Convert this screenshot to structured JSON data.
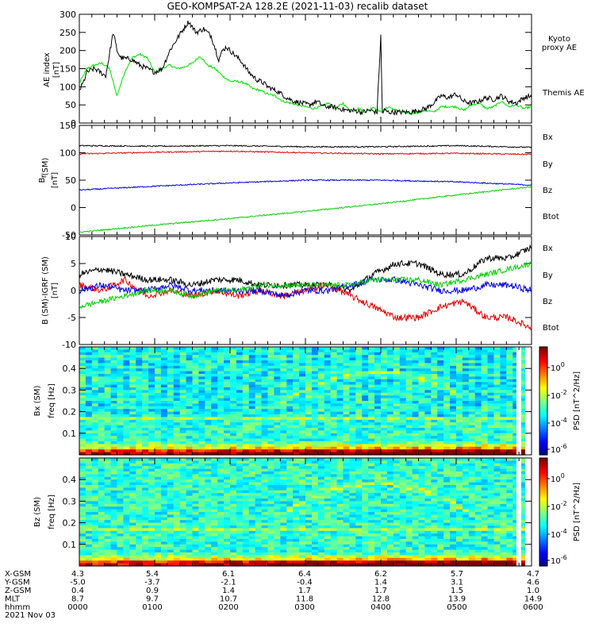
{
  "title": "GEO-KOMPSAT-2A 128.2E (2021-11-03) recalib dataset",
  "colors": {
    "black": "#000000",
    "red": "#e00000",
    "blue": "#0000e0",
    "green": "#00d000",
    "kyoto": "#00e000"
  },
  "chart_data": [
    {
      "type": "line",
      "ylabel": "AE index [nT]",
      "ylim": [
        0,
        300
      ],
      "yticks": [
        "0",
        "50",
        "100",
        "150",
        "200",
        "250",
        "300"
      ],
      "legend": [
        "Kyoto proxy AE",
        "Themis AE"
      ],
      "series": [
        {
          "name": "Themis AE",
          "color": "#000000",
          "x": [
            0,
            0.05,
            0.1,
            0.2,
            0.28,
            0.35,
            0.45,
            0.5,
            0.55,
            0.7,
            0.8,
            0.9,
            1.0,
            1.1,
            1.2,
            1.35,
            1.45,
            1.55,
            1.65,
            1.75,
            1.85,
            1.9,
            1.95,
            2.05,
            2.15,
            2.25,
            2.35,
            2.45,
            2.5,
            2.55,
            2.65,
            2.75,
            2.85,
            2.95,
            3.05,
            3.15,
            3.25,
            3.35,
            3.45,
            3.55,
            3.65,
            3.75,
            3.85,
            3.95,
            4.0,
            4.02,
            4.03,
            4.05,
            4.1,
            4.2,
            4.3,
            4.4,
            4.5,
            4.6,
            4.7,
            4.8,
            4.9,
            5.0,
            5.1,
            5.2,
            5.3,
            5.4,
            5.5,
            5.6,
            5.7,
            5.8,
            5.9,
            6.0
          ],
          "y": [
            90,
            110,
            140,
            150,
            140,
            130,
            250,
            200,
            180,
            175,
            160,
            150,
            140,
            150,
            200,
            250,
            280,
            250,
            260,
            240,
            175,
            200,
            210,
            190,
            170,
            140,
            120,
            110,
            100,
            95,
            85,
            70,
            60,
            55,
            50,
            60,
            45,
            45,
            40,
            35,
            35,
            30,
            35,
            30,
            240,
            30,
            30,
            35,
            30,
            30,
            30,
            30,
            35,
            40,
            55,
            75,
            70,
            80,
            60,
            55,
            60,
            70,
            65,
            75,
            60,
            55,
            70,
            75
          ]
        },
        {
          "name": "Kyoto proxy AE",
          "color": "#00e000",
          "x": [
            0,
            0.1,
            0.2,
            0.3,
            0.4,
            0.5,
            0.6,
            0.7,
            0.8,
            0.9,
            1.0,
            1.1,
            1.2,
            1.3,
            1.4,
            1.5,
            1.6,
            1.7,
            1.8,
            1.9,
            2.0,
            2.1,
            2.2,
            2.3,
            2.4,
            2.5,
            2.6,
            2.7,
            2.8,
            2.9,
            3.0,
            3.1,
            3.2,
            3.3,
            3.4,
            3.5,
            3.6,
            3.7,
            3.8,
            3.9,
            4.0,
            4.1,
            4.2,
            4.3,
            4.4,
            4.5,
            4.6,
            4.7,
            4.8,
            4.9,
            5.0,
            5.1,
            5.2,
            5.3,
            5.4,
            5.5,
            5.6,
            5.7,
            5.8,
            5.9,
            6.0
          ],
          "y": [
            110,
            150,
            160,
            165,
            150,
            75,
            140,
            180,
            190,
            180,
            140,
            150,
            160,
            150,
            155,
            165,
            185,
            160,
            150,
            130,
            115,
            115,
            110,
            95,
            90,
            80,
            75,
            60,
            55,
            50,
            45,
            40,
            45,
            55,
            40,
            55,
            30,
            40,
            30,
            45,
            30,
            45,
            35,
            30,
            25,
            30,
            35,
            30,
            45,
            45,
            45,
            35,
            50,
            55,
            40,
            45,
            60,
            45,
            50,
            40,
            45
          ]
        }
      ]
    },
    {
      "type": "line",
      "ylabel": "B_r (SM) [nT]",
      "ylim": [
        -50,
        150
      ],
      "yticks": [
        "-50",
        "0",
        "50",
        "100",
        "150"
      ],
      "legend": [
        "Bx",
        "By",
        "Bz",
        "Btot"
      ],
      "series": [
        {
          "name": "Btot",
          "color": "#000000",
          "x": [
            0,
            1,
            2,
            3,
            4,
            5,
            6
          ],
          "y": [
            113,
            112,
            113,
            111,
            111,
            113,
            110
          ]
        },
        {
          "name": "Bz",
          "color": "#e00000",
          "x": [
            0,
            1,
            2,
            3,
            4,
            5,
            6
          ],
          "y": [
            98,
            101,
            103,
            100,
            98,
            99,
            97
          ]
        },
        {
          "name": "Bx",
          "color": "#0000e0",
          "x": [
            0,
            1,
            2,
            3,
            4,
            5,
            6
          ],
          "y": [
            32,
            39,
            45,
            50,
            50,
            47,
            41
          ]
        },
        {
          "name": "By",
          "color": "#00d000",
          "x": [
            0,
            1,
            2,
            3,
            4,
            5,
            6
          ],
          "y": [
            -45,
            -32,
            -20,
            -7,
            7,
            23,
            38
          ]
        }
      ]
    },
    {
      "type": "line",
      "ylabel": "B (SM)-IGRF (SM) [nT]",
      "ylim": [
        -10,
        10
      ],
      "yticks": [
        "-10",
        "-5",
        "0",
        "5",
        "10"
      ],
      "legend": [
        "Bx",
        "By",
        "Bz",
        "Btot"
      ],
      "series": [
        {
          "name": "Btot",
          "color": "#000000",
          "x": [
            0,
            0.3,
            0.6,
            0.9,
            1.2,
            1.5,
            1.8,
            2.1,
            2.4,
            2.7,
            3.0,
            3.3,
            3.6,
            3.9,
            4.2,
            4.5,
            4.8,
            5.1,
            5.4,
            5.7,
            6.0
          ],
          "y": [
            3,
            4,
            3,
            2,
            2,
            1,
            2,
            2,
            1,
            1,
            1,
            1,
            0,
            3,
            5,
            5,
            3,
            3,
            6,
            6,
            8
          ]
        },
        {
          "name": "Bz",
          "color": "#e00000",
          "x": [
            0,
            0.3,
            0.6,
            0.9,
            1.2,
            1.5,
            1.8,
            2.1,
            2.4,
            2.7,
            3.0,
            3.3,
            3.6,
            3.9,
            4.2,
            4.5,
            4.8,
            5.1,
            5.4,
            5.7,
            6.0
          ],
          "y": [
            1,
            0,
            2,
            -1,
            0,
            -1,
            0,
            -1,
            0,
            -1,
            0,
            1,
            -1,
            -3,
            -5,
            -5,
            -3,
            -2,
            -5,
            -5,
            -7
          ]
        },
        {
          "name": "Bx",
          "color": "#0000e0",
          "x": [
            0,
            0.3,
            0.6,
            0.9,
            1.2,
            1.5,
            1.8,
            2.1,
            2.4,
            2.7,
            3.0,
            3.3,
            3.6,
            3.9,
            4.2,
            4.5,
            4.8,
            5.1,
            5.4,
            5.7,
            6.0
          ],
          "y": [
            0,
            1,
            0,
            0,
            1,
            0,
            0,
            0,
            0,
            -1,
            0,
            0,
            1,
            2,
            2,
            1,
            0,
            0,
            1,
            1,
            0
          ]
        },
        {
          "name": "By",
          "color": "#00d000",
          "x": [
            0,
            0.3,
            0.6,
            0.9,
            1.2,
            1.5,
            1.8,
            2.1,
            2.4,
            2.7,
            3.0,
            3.3,
            3.6,
            3.9,
            4.2,
            4.5,
            4.8,
            5.1,
            5.4,
            5.7,
            6.0
          ],
          "y": [
            -3,
            -2,
            -1,
            0,
            0,
            -1,
            0,
            0,
            1,
            1,
            1,
            1,
            1,
            2,
            2,
            2,
            1,
            2,
            3,
            4,
            5
          ]
        }
      ]
    },
    {
      "type": "heatmap",
      "ylabel": "Bx (SM) freq [Hz]",
      "ylim": [
        0,
        0.5
      ],
      "yticks": [
        "0.1",
        "0.2",
        "0.3",
        "0.4"
      ],
      "colorbar": {
        "label": "PSD [nT^2/Hz]",
        "ticks": [
          "10^0",
          "10^-2",
          "10^-4",
          "10^-6"
        ]
      }
    },
    {
      "type": "heatmap",
      "ylabel": "Bz (SM) freq [Hz]",
      "ylim": [
        0,
        0.5
      ],
      "yticks": [
        "0.1",
        "0.2",
        "0.3",
        "0.4"
      ],
      "colorbar": {
        "label": "PSD [nT^2/Hz]",
        "ticks": [
          "10^0",
          "10^-2",
          "10^-4",
          "10^-6"
        ]
      }
    }
  ],
  "footer": {
    "rows": [
      {
        "label": "X-GSM",
        "values": [
          "4.3",
          "5.4",
          "6.1",
          "6.4",
          "6.2",
          "5.7",
          "4.7"
        ]
      },
      {
        "label": "Y-GSM",
        "values": [
          "-5.0",
          "-3.7",
          "-2.1",
          "-0.4",
          "1.4",
          "3.1",
          "4.6"
        ]
      },
      {
        "label": "Z-GSM",
        "values": [
          "0.4",
          "0.9",
          "1.4",
          "1.7",
          "1.7",
          "1.5",
          "1.0"
        ]
      },
      {
        "label": "MLT",
        "values": [
          "8.7",
          "9.7",
          "10.7",
          "11.8",
          "12.8",
          "13.9",
          "14.9"
        ]
      },
      {
        "label": "hhmm",
        "values": [
          "0000",
          "0100",
          "0200",
          "0300",
          "0400",
          "0500",
          "0600"
        ]
      }
    ],
    "date": "2021 Nov 03"
  },
  "legend_labels": {
    "kyoto": "Kyoto\nproxy AE",
    "themis": "Themis AE"
  }
}
